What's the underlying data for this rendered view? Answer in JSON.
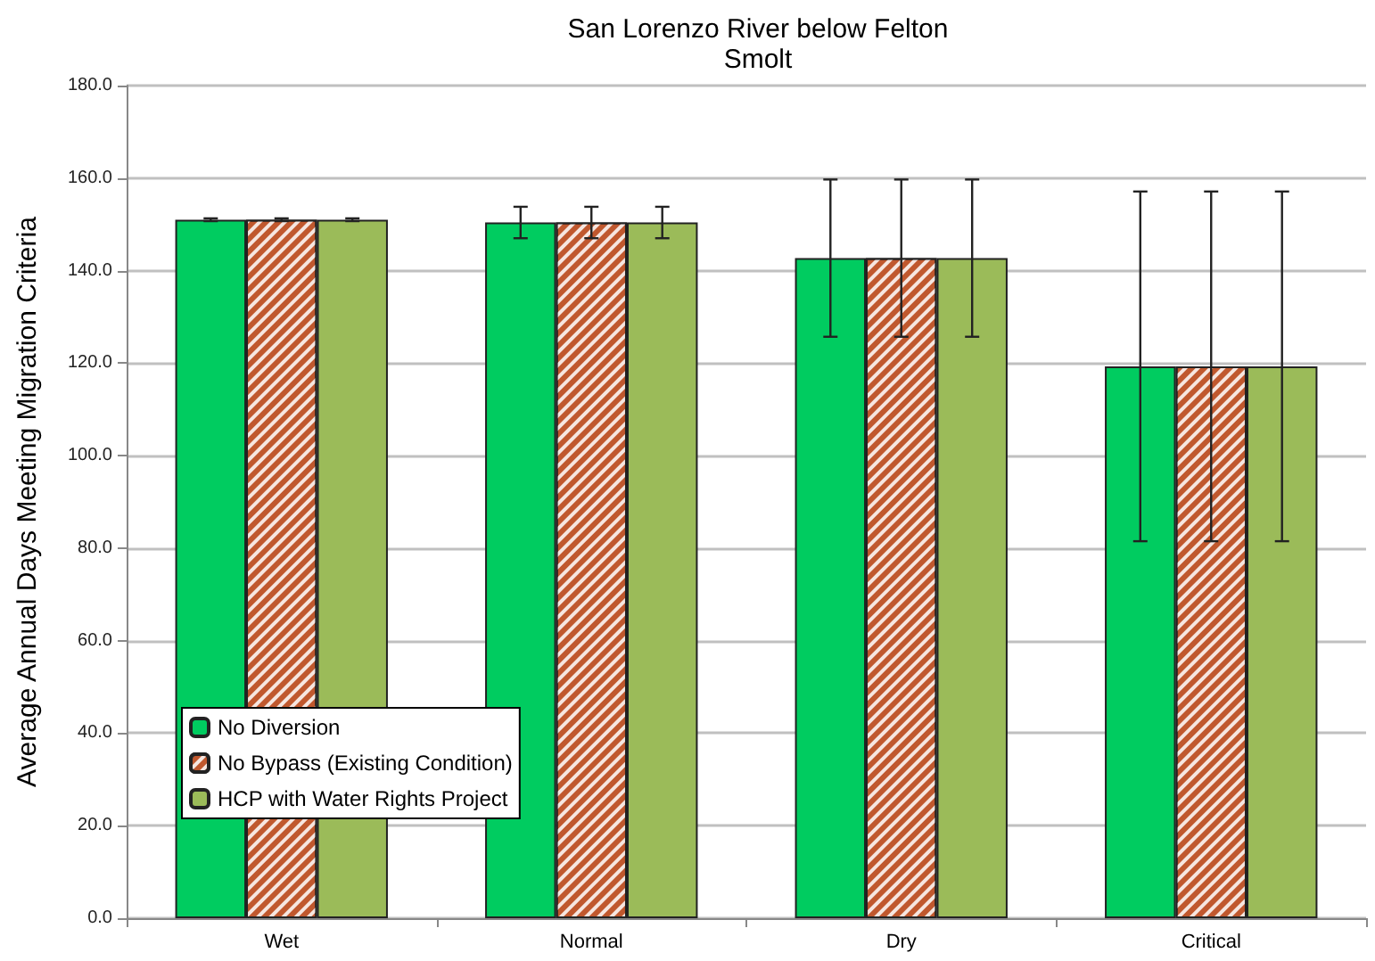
{
  "chart_data": {
    "type": "bar",
    "title": "San Lorenzo River below Felton",
    "subtitle": "Smolt",
    "ylabel": "Average Annual Days Meeting Migration Criteria",
    "categories": [
      "Wet",
      "Normal",
      "Dry",
      "Critical"
    ],
    "series": [
      {
        "name": "No Diversion",
        "color": "#00cc60",
        "values": [
          151.0,
          150.4,
          142.7,
          119.3
        ],
        "errors": [
          0.3,
          3.4,
          17.0,
          37.8
        ]
      },
      {
        "name": "No Bypass (Existing Condition)",
        "color": "#c0582e",
        "values": [
          151.0,
          150.4,
          142.7,
          119.3
        ],
        "errors": [
          0.3,
          3.4,
          17.0,
          37.8
        ]
      },
      {
        "name": "HCP with Water Rights Project",
        "color": "#9bbb59",
        "values": [
          151.0,
          150.4,
          142.7,
          119.3
        ],
        "errors": [
          0.3,
          3.4,
          17.0,
          37.8
        ]
      }
    ],
    "ylim": [
      0,
      180
    ],
    "yticks": [
      {
        "value": 0,
        "label": "0.0"
      },
      {
        "value": 20,
        "label": "20.0"
      },
      {
        "value": 40,
        "label": "40.0"
      },
      {
        "value": 60,
        "label": "60.0"
      },
      {
        "value": 80,
        "label": "80.0"
      },
      {
        "value": 100,
        "label": "100.0"
      },
      {
        "value": 120,
        "label": "120.0"
      },
      {
        "value": 140,
        "label": "140.0"
      },
      {
        "value": 160,
        "label": "160.0"
      },
      {
        "value": 180,
        "label": "180.0"
      }
    ],
    "grid": "y",
    "legend": "bottom left"
  }
}
